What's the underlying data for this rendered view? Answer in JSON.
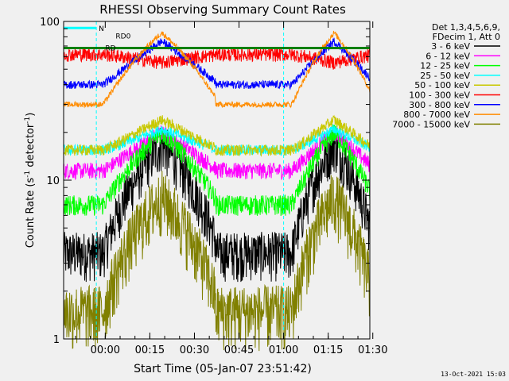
{
  "chart_data": {
    "type": "line",
    "title": "RHESSI Observing Summary Count Rates",
    "xlabel": "Start Time (05-Jan-07 23:51:42)",
    "ylabel_prefix": "Count Rate (s",
    "ylabel_sup": "-1",
    "ylabel_suffix": " detector",
    "ylabel_sup2": "-1",
    "ylabel_end": ")",
    "xlim_minutes": [
      -6,
      97
    ],
    "x_ticks": [
      {
        "label": "00:00",
        "value": 8
      },
      {
        "label": "00:15",
        "value": 23
      },
      {
        "label": "00:30",
        "value": 38
      },
      {
        "label": "00:45",
        "value": 53
      },
      {
        "label": "01:00",
        "value": 68
      },
      {
        "label": "01:15",
        "value": 83
      },
      {
        "label": "01:30",
        "value": 98
      }
    ],
    "y_scale": "log",
    "ylim": [
      1,
      100
    ],
    "y_ticks": [
      {
        "label": "1",
        "value": 1
      },
      {
        "label": "10",
        "value": 10
      },
      {
        "label": "100",
        "value": 100
      }
    ],
    "legend_header": [
      "Det 1,3,4,5,6,9,",
      "FDecim 1, Att 0"
    ],
    "series": [
      {
        "name": "3 - 6 keV",
        "color": "#000000",
        "base": 3.5,
        "peak": 17,
        "noise": 0.35
      },
      {
        "name": "6 - 12 keV",
        "color": "#ff00ff",
        "base": 11.5,
        "peak": 20,
        "noise": 0.12
      },
      {
        "name": "12 - 25 keV",
        "color": "#00ff00",
        "base": 7,
        "peak": 20,
        "noise": 0.15
      },
      {
        "name": "25 - 50 keV",
        "color": "#00ffff",
        "base": 15.5,
        "peak": 21,
        "noise": 0.08
      },
      {
        "name": "50 - 100 keV",
        "color": "#c8c800",
        "base": 15.5,
        "peak": 24,
        "noise": 0.08
      },
      {
        "name": "100 - 300 keV",
        "color": "#ff0000",
        "base": 62,
        "peak": 55,
        "noise": 0.1
      },
      {
        "name": "300 - 800 keV",
        "color": "#0000ff",
        "base": 40,
        "peak": 75,
        "noise": 0.06
      },
      {
        "name": "800 - 7000 keV",
        "color": "#ff8c00",
        "base": 30,
        "peak": 85,
        "noise": 0.04
      },
      {
        "name": "7000 - 15000 keV",
        "color": "#808000",
        "base": 1.5,
        "peak": 8,
        "noise": 0.45
      }
    ],
    "annotations": [
      {
        "label": "N",
        "color": "#00ffff"
      },
      {
        "label": "RD",
        "color": "#008000"
      },
      {
        "label": "RD0",
        "color": "#008000"
      }
    ],
    "timestamp": "13-Oct-2021 15:03"
  }
}
